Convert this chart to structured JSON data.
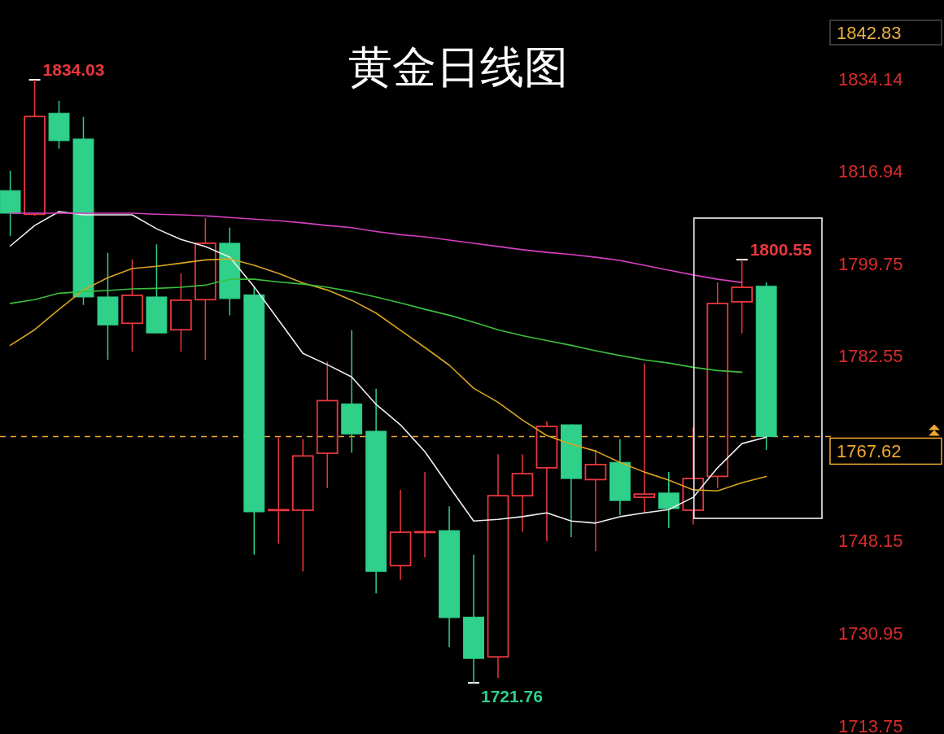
{
  "chart_data": {
    "type": "candlestick",
    "title": "黄金日线图",
    "categories": [
      null,
      null,
      null,
      null,
      null,
      null,
      null,
      null,
      null,
      null,
      null,
      null,
      null,
      null,
      null,
      null,
      null,
      null,
      null,
      null,
      null,
      null,
      null,
      null,
      null,
      null,
      null,
      null,
      null,
      null,
      null,
      null
    ],
    "ohlc": [
      [
        1813.4,
        1817.1,
        1804.9,
        1809.2
      ],
      [
        1809.0,
        1834.03,
        1808.7,
        1827.2
      ],
      [
        1827.8,
        1830.1,
        1821.2,
        1822.7
      ],
      [
        1823.0,
        1827.1,
        1792.1,
        1793.6
      ],
      [
        1793.6,
        1801.8,
        1781.9,
        1788.4
      ],
      [
        1788.7,
        1800.6,
        1783.4,
        1793.9
      ],
      [
        1793.6,
        1803.4,
        1786.9,
        1786.9
      ],
      [
        1787.5,
        1798.0,
        1783.4,
        1793.0
      ],
      [
        1793.1,
        1808.3,
        1781.9,
        1803.6
      ],
      [
        1803.6,
        1806.5,
        1790.2,
        1793.3
      ],
      [
        1794.0,
        1795.4,
        1745.6,
        1753.6
      ],
      [
        1754.0,
        1767.5,
        1747.7,
        1754.0
      ],
      [
        1753.9,
        1767.1,
        1742.5,
        1764.0
      ],
      [
        1764.5,
        1781.6,
        1758.0,
        1774.3
      ],
      [
        1773.7,
        1787.4,
        1764.6,
        1768.1
      ],
      [
        1768.6,
        1776.5,
        1738.4,
        1742.5
      ],
      [
        1743.6,
        1757.7,
        1740.9,
        1749.8
      ],
      [
        1749.9,
        1761.0,
        1745.1,
        1749.9
      ],
      [
        1750.1,
        1754.6,
        1728.4,
        1733.9
      ],
      [
        1734.0,
        1745.6,
        1721.76,
        1726.3
      ],
      [
        1726.6,
        1764.3,
        1722.7,
        1756.6
      ],
      [
        1756.6,
        1764.3,
        1749.9,
        1760.7
      ],
      [
        1761.8,
        1770.4,
        1748.1,
        1769.5
      ],
      [
        1769.8,
        1769.9,
        1748.9,
        1759.8
      ],
      [
        1759.6,
        1765.2,
        1746.3,
        1762.4
      ],
      [
        1762.8,
        1767.1,
        1753.0,
        1755.7
      ],
      [
        1756.3,
        1781.2,
        1753.4,
        1756.9
      ],
      [
        1757.1,
        1761.0,
        1750.6,
        1754.2
      ],
      [
        1753.9,
        1769.3,
        1751.2,
        1759.8
      ],
      [
        1760.2,
        1796.3,
        1758.0,
        1792.4
      ],
      [
        1792.7,
        1800.55,
        1786.8,
        1795.4
      ],
      [
        1795.6,
        1796.3,
        1765.1,
        1767.62
      ]
    ],
    "colors": [
      "#2fd08a",
      "#e8383d",
      "#2fd08a",
      "#2fd08a",
      "#2fd08a",
      "#e8383d",
      "#2fd08a",
      "#e8383d",
      "#e8383d",
      "#2fd08a",
      "#2fd08a",
      "#e8383d",
      "#e8383d",
      "#e8383d",
      "#2fd08a",
      "#2fd08a",
      "#e8383d",
      "#e8383d",
      "#2fd08a",
      "#2fd08a",
      "#e8383d",
      "#e8383d",
      "#e8383d",
      "#2fd08a",
      "#e8383d",
      "#2fd08a",
      "#e8383d",
      "#2fd08a",
      "#e8383d",
      "#e8383d",
      "#e8383d",
      "#2fd08a"
    ],
    "value_labels": [
      null,
      "1834.03",
      null,
      null,
      null,
      null,
      null,
      null,
      null,
      null,
      null,
      null,
      null,
      null,
      null,
      null,
      null,
      null,
      null,
      "1721.76",
      null,
      null,
      null,
      null,
      null,
      null,
      null,
      null,
      null,
      null,
      "1800.55",
      null
    ],
    "series": [
      {
        "type": "line",
        "color": "#eeeeee",
        "values": [
          1803.1,
          1806.9,
          1809.5,
          1808.9,
          1808.9,
          1808.9,
          1806.3,
          1804.3,
          1803.0,
          1801.0,
          1795.5,
          1789.3,
          1783.1,
          1781.0,
          1778.7,
          1773.6,
          1769.8,
          1764.8,
          1758.3,
          1751.9,
          1752.2,
          1752.7,
          1753.4,
          1751.9,
          1751.5,
          1752.7,
          1753.4,
          1754.0,
          1756.3,
          1761.8,
          1766.3,
          1767.5
        ]
      },
      {
        "type": "line",
        "color": "#d9a520",
        "values": [
          1784.6,
          1787.5,
          1791.3,
          1794.9,
          1797.2,
          1798.9,
          1799.3,
          1799.9,
          1800.5,
          1800.7,
          1799.5,
          1798.0,
          1796.2,
          1794.9,
          1793.0,
          1790.6,
          1787.4,
          1784.2,
          1780.9,
          1776.6,
          1774.0,
          1770.7,
          1767.8,
          1766.2,
          1764.9,
          1762.8,
          1761.0,
          1759.5,
          1757.7,
          1757.5,
          1759.0,
          1760.2
        ]
      },
      {
        "type": "line",
        "color": "#3cbf3c",
        "values": [
          1792.4,
          1793.1,
          1794.3,
          1794.6,
          1794.8,
          1795.1,
          1795.2,
          1795.4,
          1795.8,
          1796.9,
          1796.9,
          1796.4,
          1796.0,
          1795.4,
          1794.6,
          1793.6,
          1792.5,
          1791.3,
          1790.2,
          1788.9,
          1787.5,
          1786.4,
          1785.5,
          1784.6,
          1783.6,
          1782.7,
          1781.9,
          1781.3,
          1780.5,
          1779.9,
          1779.6,
          null
        ]
      },
      {
        "type": "line",
        "color": "#d63fc0",
        "values": [
          1809.2,
          1809.2,
          1809.2,
          1809.2,
          1809.2,
          1809.2,
          1809.0,
          1808.9,
          1808.7,
          1808.4,
          1808.1,
          1807.8,
          1807.4,
          1806.9,
          1806.5,
          1805.8,
          1805.2,
          1804.8,
          1804.2,
          1803.6,
          1803.0,
          1802.4,
          1801.9,
          1801.5,
          1801.0,
          1800.4,
          1799.5,
          1798.6,
          1797.7,
          1796.9,
          1796.3,
          null
        ]
      }
    ],
    "ylim": [
      1713.75,
      1842.83
    ],
    "yticks": [
      1842.83,
      1834.14,
      1816.94,
      1799.75,
      1782.55,
      1748.15,
      1730.95,
      1713.75
    ],
    "ref_lines": [
      {
        "axis": "y",
        "value": 1767.62,
        "label": "1767.62",
        "color": "#f0a830",
        "line_style": "dashed"
      }
    ]
  }
}
